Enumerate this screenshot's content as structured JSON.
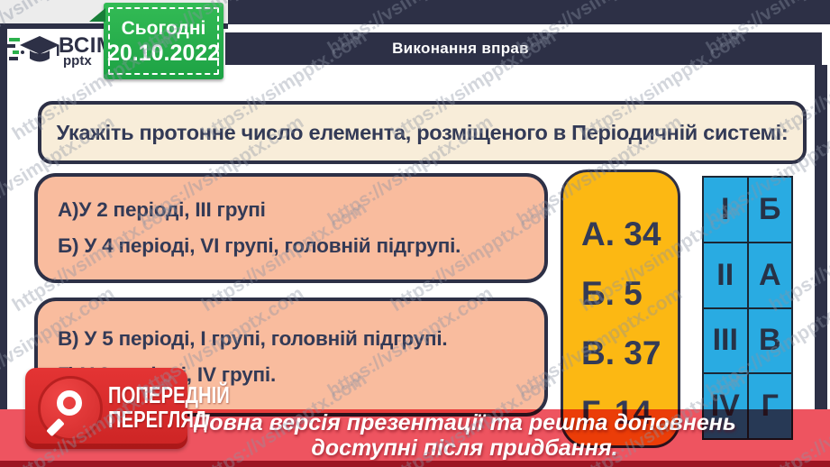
{
  "watermark": {
    "text": "https://vsimpptx.com"
  },
  "logo": {
    "brand": "ВСІМ",
    "sub": "pptx"
  },
  "date_badge": {
    "label": "Сьогодні",
    "date": "20.10.2022"
  },
  "header": {
    "title": "Виконання вправ"
  },
  "question": {
    "text": "Укажіть протонне число елемента, розміщеного в Періодичній системі:"
  },
  "options_box1": {
    "lines": [
      "А)У 2 періоді, III групі",
      "Б) У 4 періоді, VI групі, головній підгрупі."
    ]
  },
  "options_box2": {
    "lines": [
      "В) У 5 періоді, I групі, головній підгрупі.",
      "Г) У 3 періоді, IV групі."
    ]
  },
  "answers": {
    "lines": [
      "А. 34",
      "Б. 5",
      "В. 37",
      "Г. 14"
    ]
  },
  "match_table": {
    "rows": [
      [
        "I",
        "Б"
      ],
      [
        "II",
        "А"
      ],
      [
        "III",
        "В"
      ],
      [
        "IV",
        "Г"
      ]
    ]
  },
  "preview_badge": {
    "line1": "ПОПЕРЕДНІЙ",
    "line2": "ПЕРЕГЛЯД"
  },
  "footer": {
    "line1": "Повна версія презентації та решта доповнень",
    "line2": "доступні після придбання."
  },
  "colors": {
    "dark_navy": "#2d3046",
    "cream": "#f8edd9",
    "salmon": "#f9bc9e",
    "yellow": "#fcb813",
    "blue": "#29abe2",
    "footer_red": "#ee5460",
    "bottom_strip_red": "#9c1522",
    "badge_green": "#2bb14c",
    "preview_red": "#d92c2c"
  }
}
